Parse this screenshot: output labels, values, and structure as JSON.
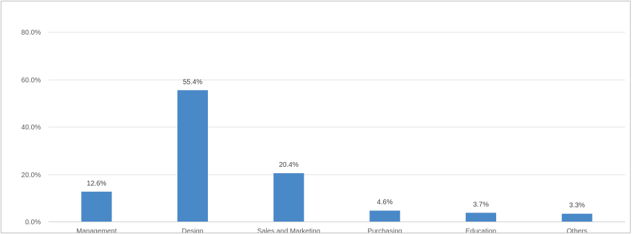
{
  "chart_data": {
    "type": "bar",
    "title": "",
    "xlabel": "",
    "ylabel": "",
    "categories": [
      "Management",
      "Design",
      "Sales and Marketing",
      "Purchasing",
      "Education",
      "Others"
    ],
    "values": [
      12.6,
      55.4,
      20.4,
      4.6,
      3.7,
      3.3
    ],
    "data_labels": [
      "12.6%",
      "55.4%",
      "20.4%",
      "4.6%",
      "3.7%",
      "3.3%"
    ],
    "ylim": [
      0,
      80
    ],
    "yticks": [
      0,
      20,
      40,
      60,
      80
    ],
    "ytick_labels": [
      "0.0%",
      "20.0%",
      "40.0%",
      "60.0%",
      "80.0%"
    ],
    "grid": true,
    "legend": "none",
    "bar_color": "#4a89c8"
  }
}
